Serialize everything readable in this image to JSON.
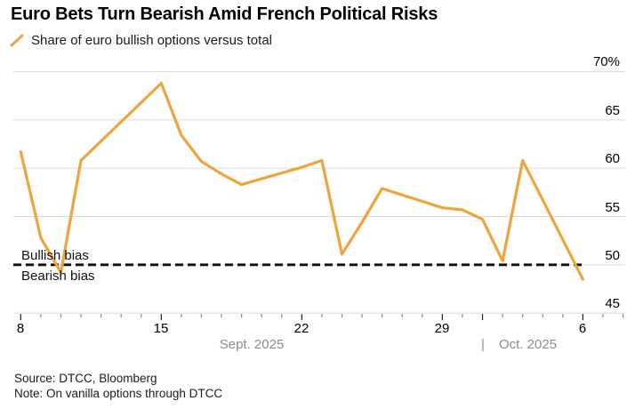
{
  "header": {
    "title": "Euro Bets Turn Bearish Amid French Political Risks",
    "legend_label": "Share of euro bullish options versus total"
  },
  "annotations": {
    "bullish_label": "Bullish bias",
    "bearish_label": "Bearish bias"
  },
  "footer": {
    "source": "Source: DTCC, Bloomberg",
    "note": "Note: On vanilla options through DTCC"
  },
  "colors": {
    "line": "#F0A43E",
    "grid": "#DBDBDB",
    "reference": "#111111",
    "minor_tick": "#888888",
    "major_tick": "#222222",
    "month_label": "#8C8C8C"
  },
  "chart_data": {
    "type": "line",
    "title": "Euro Bets Turn Bearish Amid French Political Risks",
    "series_name": "Share of euro bullish options versus total",
    "unit": "%",
    "x": [
      "Sep 8",
      "Sep 9",
      "Sep 10",
      "Sep 11",
      "Sep 12",
      "Sep 15",
      "Sep 16",
      "Sep 17",
      "Sep 18",
      "Sep 19",
      "Sep 22",
      "Sep 23",
      "Sep 24",
      "Sep 25",
      "Sep 26",
      "Sep 29",
      "Sep 30",
      "Oct 1",
      "Oct 2",
      "Oct 3",
      "Oct 6"
    ],
    "day_offsets": [
      0,
      1,
      2,
      3,
      4,
      7,
      8,
      9,
      10,
      11,
      14,
      15,
      16,
      17,
      18,
      21,
      22,
      23,
      24,
      25,
      28
    ],
    "values": [
      61.7,
      52.8,
      49.2,
      60.8,
      62.8,
      68.8,
      63.4,
      60.7,
      59.4,
      58.3,
      60.1,
      60.8,
      51.1,
      54.4,
      57.9,
      55.9,
      55.7,
      54.7,
      50.4,
      60.8,
      48.5
    ],
    "reference_line": {
      "value": 50,
      "style": "dashed",
      "label_above": "Bullish bias",
      "label_below": "Bearish bias"
    },
    "ylim": [
      45,
      70
    ],
    "grid": true,
    "legend_position": "top-left",
    "y_axis": {
      "tick_values": [
        45,
        50,
        55,
        60,
        65,
        70
      ],
      "tick_labels": [
        "45",
        "50",
        "55",
        "60",
        "65",
        "70%"
      ]
    },
    "x_axis": {
      "major_tick_labels": [
        "8",
        "15",
        "22",
        "29",
        "6"
      ],
      "major_tick_offsets": [
        0,
        7,
        14,
        21,
        28
      ],
      "month_boundary_offset": 23,
      "total_day_ticks": 31,
      "month_labels": {
        "sept": "Sept. 2025",
        "divider": "|",
        "oct": "Oct. 2025"
      }
    }
  }
}
